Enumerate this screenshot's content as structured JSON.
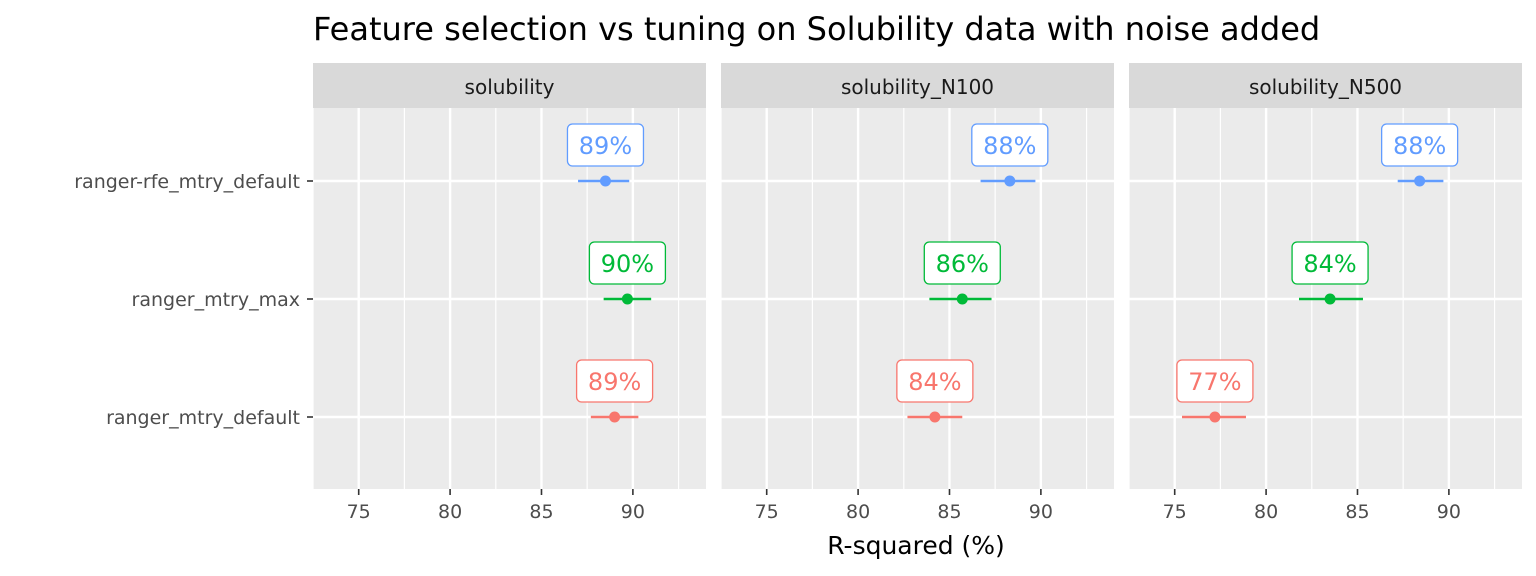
{
  "chart_data": {
    "type": "scatter",
    "title": "Feature selection vs tuning on Solubility data with noise added",
    "xlabel": "R-squared (%)",
    "ylabel": "",
    "xlim": [
      72.5,
      94.0
    ],
    "xticks": [
      75,
      80,
      85,
      90
    ],
    "xtick_labels": [
      "75",
      "80",
      "85",
      "90"
    ],
    "categories": [
      "ranger-rfe_mtry_default",
      "ranger_mtry_max",
      "ranger_mtry_default"
    ],
    "series_colors": {
      "ranger-rfe_mtry_default": "#619CFF",
      "ranger_mtry_max": "#00BA38",
      "ranger_mtry_default": "#F8766D"
    },
    "panel_background": "#EBEBEB",
    "strip_background": "#D9D9D9",
    "grid": true,
    "legend": "none",
    "facets": [
      {
        "name": "solubility",
        "points": [
          {
            "model": "ranger-rfe_mtry_default",
            "estimate": 88.5,
            "lower": 87.0,
            "upper": 89.8,
            "label": "89%"
          },
          {
            "model": "ranger_mtry_max",
            "estimate": 89.7,
            "lower": 88.4,
            "upper": 91.0,
            "label": "90%"
          },
          {
            "model": "ranger_mtry_default",
            "estimate": 89.0,
            "lower": 87.7,
            "upper": 90.3,
            "label": "89%"
          }
        ]
      },
      {
        "name": "solubility_N100",
        "points": [
          {
            "model": "ranger-rfe_mtry_default",
            "estimate": 88.3,
            "lower": 86.7,
            "upper": 89.7,
            "label": "88%"
          },
          {
            "model": "ranger_mtry_max",
            "estimate": 85.7,
            "lower": 83.9,
            "upper": 87.3,
            "label": "86%"
          },
          {
            "model": "ranger_mtry_default",
            "estimate": 84.2,
            "lower": 82.7,
            "upper": 85.7,
            "label": "84%"
          }
        ]
      },
      {
        "name": "solubility_N500",
        "points": [
          {
            "model": "ranger-rfe_mtry_default",
            "estimate": 88.4,
            "lower": 87.2,
            "upper": 89.7,
            "label": "88%"
          },
          {
            "model": "ranger_mtry_max",
            "estimate": 83.5,
            "lower": 81.8,
            "upper": 85.3,
            "label": "84%"
          },
          {
            "model": "ranger_mtry_default",
            "estimate": 77.2,
            "lower": 75.4,
            "upper": 78.9,
            "label": "77%"
          }
        ]
      }
    ]
  }
}
